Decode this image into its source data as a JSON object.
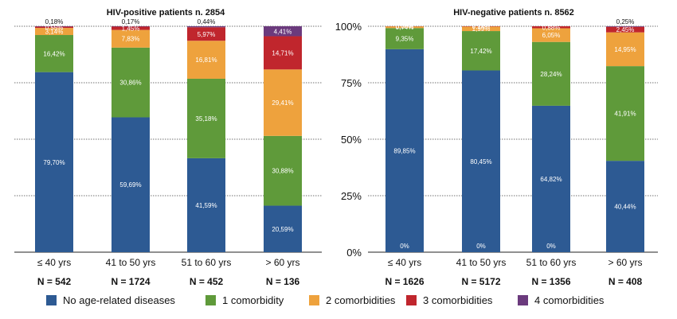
{
  "colors": {
    "no_disease": "#2d5a93",
    "one": "#5f9a3a",
    "two": "#eea23d",
    "three": "#c0262d",
    "four": "#6b3a7d"
  },
  "chart_data": [
    {
      "type": "bar",
      "stacked": true,
      "title": "HIV-positive patients n. 2854",
      "categories": [
        "≤ 40 yrs",
        "41 to 50 yrs",
        "51 to 60 yrs",
        "> 60 yrs"
      ],
      "n_labels": [
        "N = 542",
        "N = 1724",
        "N = 452",
        "N = 136"
      ],
      "ylim": [
        0,
        100
      ],
      "yticks_shown": false,
      "grid": true,
      "series": [
        {
          "name": "No age-related diseases",
          "color_key": "no_disease",
          "values": [
            79.7,
            59.69,
            41.59,
            20.59
          ],
          "labels": [
            "79,70%",
            "59,69%",
            "41,59%",
            "20,59%"
          ]
        },
        {
          "name": "1 comorbidity",
          "color_key": "one",
          "values": [
            16.42,
            30.86,
            35.18,
            30.88
          ],
          "labels": [
            "16,42%",
            "30,86%",
            "35,18%",
            "30,88%"
          ]
        },
        {
          "name": "2 comorbidities",
          "color_key": "two",
          "values": [
            3.14,
            7.83,
            16.81,
            29.41
          ],
          "labels": [
            "3,14%",
            "7,83%",
            "16,81%",
            "29,41%"
          ]
        },
        {
          "name": "3 comorbidities",
          "color_key": "three",
          "values": [
            0.55,
            1.45,
            5.97,
            14.71
          ],
          "labels": [
            "0,55%",
            "1,45%",
            "5,97%",
            "14,71%"
          ]
        },
        {
          "name": "4 comorbidities",
          "color_key": "four",
          "values": [
            0.18,
            0.17,
            0.44,
            4.41
          ],
          "labels": [
            "0,18%",
            "0,17%",
            "0,44%",
            "4,41%"
          ]
        }
      ]
    },
    {
      "type": "bar",
      "stacked": true,
      "title": "HIV-negative patients n. 8562",
      "categories": [
        "≤ 40 yrs",
        "41 to 50 yrs",
        "51 to 60 yrs",
        "> 60 yrs"
      ],
      "n_labels": [
        "N = 1626",
        "N = 5172",
        "N = 1356",
        "N = 408"
      ],
      "ylim": [
        0,
        100
      ],
      "yticks": [
        "0%",
        "25%",
        "50%",
        "75%",
        "100%"
      ],
      "yticks_shown": true,
      "grid": true,
      "series": [
        {
          "name": "No age-related diseases",
          "color_key": "no_disease",
          "values": [
            89.85,
            80.45,
            64.82,
            40.44
          ],
          "labels": [
            "89,85%",
            "80,45%",
            "64,82%",
            "40,44%"
          ]
        },
        {
          "name": "1 comorbidity",
          "color_key": "one",
          "values": [
            9.35,
            17.42,
            28.24,
            41.91
          ],
          "labels": [
            "9,35%",
            "17,42%",
            "28,24%",
            "41,91%"
          ]
        },
        {
          "name": "2 comorbidities",
          "color_key": "two",
          "values": [
            0.74,
            1.99,
            6.05,
            14.95
          ],
          "labels": [
            "0,74%",
            "1,99%",
            "6,05%",
            "14,95%"
          ]
        },
        {
          "name": "3 comorbidities",
          "color_key": "three",
          "values": [
            0.06,
            0.14,
            0.88,
            2.45
          ],
          "labels": [
            "0,06%",
            "0,14%",
            "0,88%",
            "2,45%"
          ]
        },
        {
          "name": "4 comorbidities",
          "color_key": "four",
          "values": [
            0,
            0,
            0,
            0.25
          ],
          "labels": [
            "0%",
            "0%",
            "0%",
            "0,25%"
          ]
        }
      ]
    }
  ],
  "legend": [
    {
      "label": "No age-related diseases",
      "color_key": "no_disease"
    },
    {
      "label": "1 comorbidity",
      "color_key": "one"
    },
    {
      "label": "2 comorbidities",
      "color_key": "two"
    },
    {
      "label": "3 comorbidities",
      "color_key": "three"
    },
    {
      "label": "4 comorbidities",
      "color_key": "four"
    }
  ]
}
